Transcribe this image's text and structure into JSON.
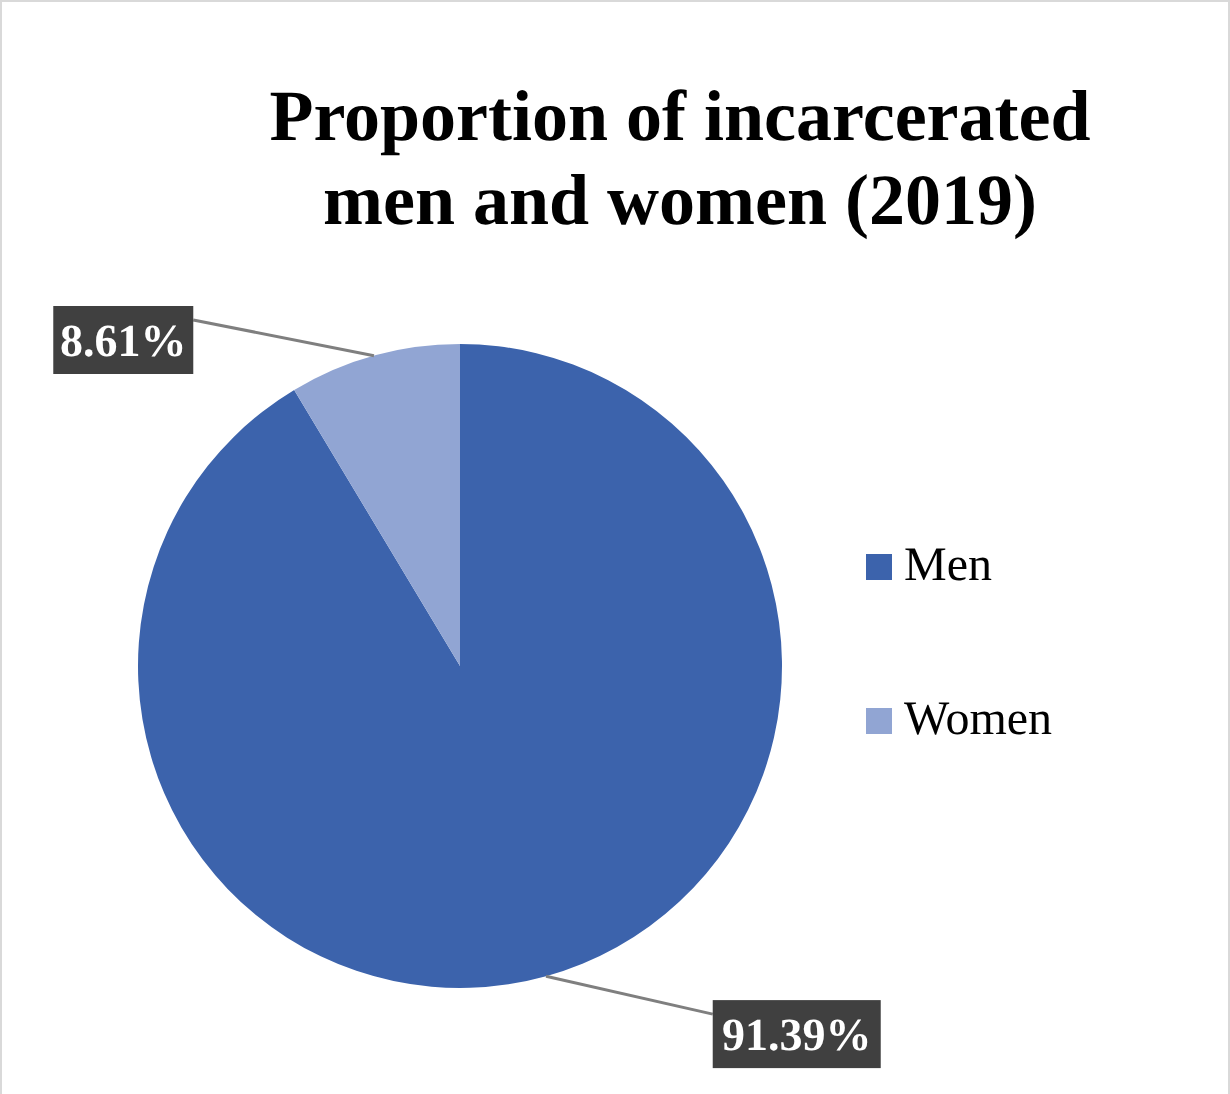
{
  "chart_data": {
    "type": "pie",
    "title": "Proportion of incarcerated men and women (2019)",
    "categories": [
      "Men",
      "Women"
    ],
    "values": [
      91.39,
      8.61
    ],
    "colors": [
      "#3c63ac",
      "#91a5d3"
    ],
    "value_labels": [
      "91.39%",
      "8.61%"
    ],
    "legend": "right"
  }
}
